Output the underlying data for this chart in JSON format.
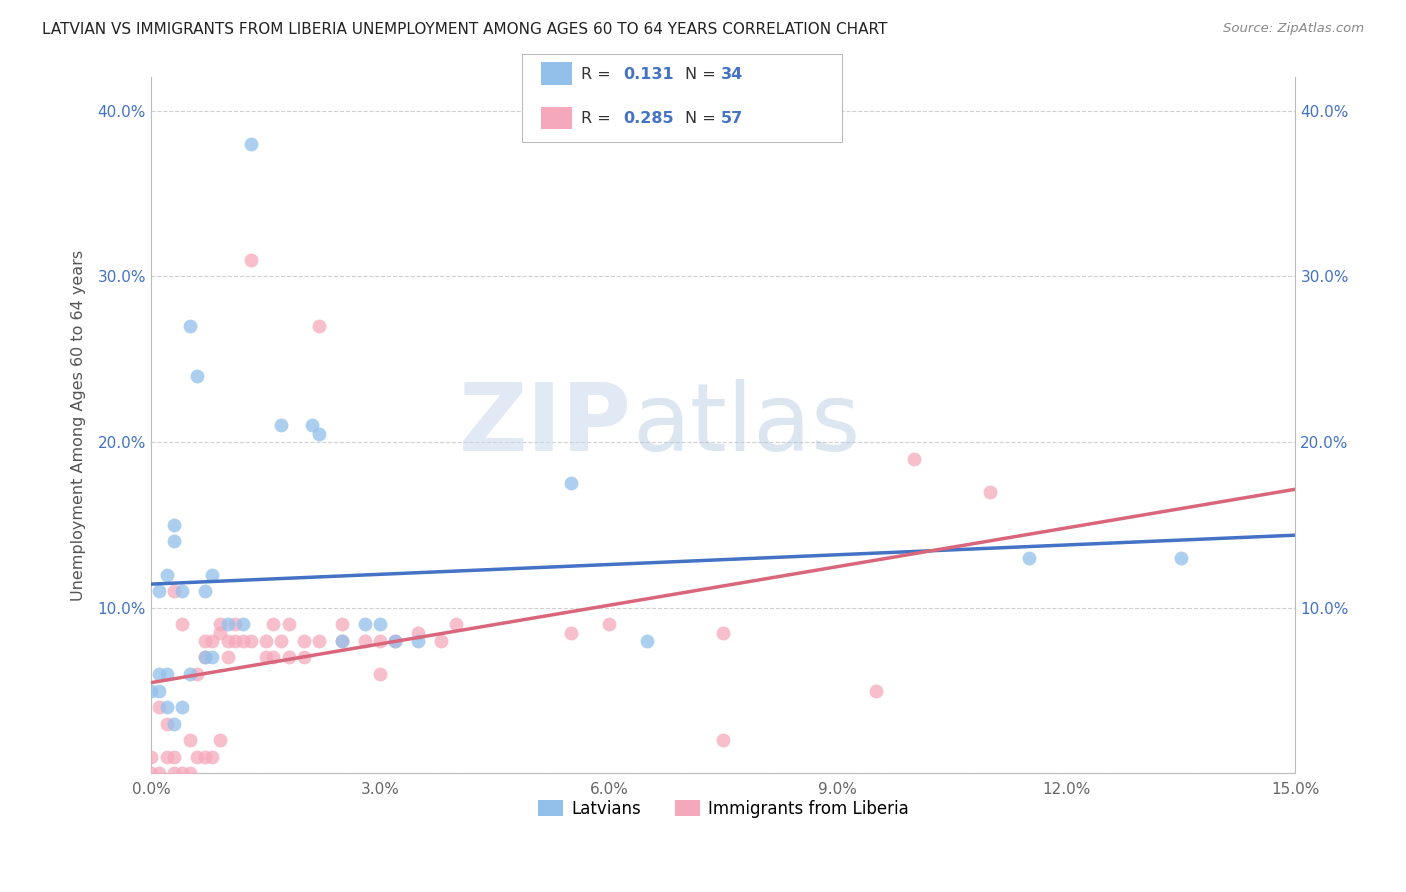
{
  "title": "LATVIAN VS IMMIGRANTS FROM LIBERIA UNEMPLOYMENT AMONG AGES 60 TO 64 YEARS CORRELATION CHART",
  "source": "Source: ZipAtlas.com",
  "ylabel": "Unemployment Among Ages 60 to 64 years",
  "xlim": [
    0.0,
    0.15
  ],
  "ylim": [
    0.0,
    0.42
  ],
  "xticks": [
    0.0,
    0.03,
    0.06,
    0.09,
    0.12,
    0.15
  ],
  "yticks": [
    0.0,
    0.1,
    0.2,
    0.3,
    0.4
  ],
  "xticklabels": [
    "0.0%",
    "3.0%",
    "6.0%",
    "9.0%",
    "12.0%",
    "15.0%"
  ],
  "yticklabels": [
    "",
    "10.0%",
    "20.0%",
    "30.0%",
    "40.0%"
  ],
  "legend_labels": [
    "Latvians",
    "Immigrants from Liberia"
  ],
  "R_latvian": 0.131,
  "N_latvian": 34,
  "R_liberia": 0.285,
  "N_liberia": 57,
  "color_latvian": "#92c0ea",
  "color_liberia": "#f5a8bb",
  "line_color_latvian": "#4472c4",
  "line_color_liberia": "#d9667a",
  "watermark_zip": "ZIP",
  "watermark_atlas": "atlas",
  "background_color": "#ffffff",
  "grid_color": "#d0d0d0",
  "latvian_x": [
    0.013,
    0.005,
    0.006,
    0.021,
    0.017,
    0.022,
    0.003,
    0.003,
    0.002,
    0.001,
    0.0,
    0.001,
    0.002,
    0.003,
    0.004,
    0.005,
    0.007,
    0.008,
    0.01,
    0.012,
    0.025,
    0.028,
    0.03,
    0.032,
    0.035,
    0.055,
    0.065,
    0.115,
    0.135,
    0.007,
    0.008,
    0.004,
    0.002,
    0.001
  ],
  "latvian_y": [
    0.38,
    0.27,
    0.24,
    0.21,
    0.21,
    0.205,
    0.15,
    0.14,
    0.12,
    0.11,
    0.05,
    0.05,
    0.04,
    0.03,
    0.04,
    0.06,
    0.07,
    0.07,
    0.09,
    0.09,
    0.08,
    0.09,
    0.09,
    0.08,
    0.08,
    0.175,
    0.08,
    0.13,
    0.13,
    0.11,
    0.12,
    0.11,
    0.06,
    0.06
  ],
  "liberia_x": [
    0.0,
    0.0,
    0.001,
    0.001,
    0.002,
    0.002,
    0.003,
    0.003,
    0.004,
    0.005,
    0.005,
    0.006,
    0.006,
    0.007,
    0.007,
    0.008,
    0.008,
    0.009,
    0.009,
    0.01,
    0.01,
    0.011,
    0.011,
    0.012,
    0.013,
    0.013,
    0.015,
    0.015,
    0.016,
    0.016,
    0.017,
    0.018,
    0.018,
    0.02,
    0.02,
    0.022,
    0.022,
    0.025,
    0.025,
    0.028,
    0.03,
    0.03,
    0.032,
    0.035,
    0.038,
    0.04,
    0.055,
    0.06,
    0.075,
    0.075,
    0.095,
    0.1,
    0.11,
    0.003,
    0.004,
    0.007,
    0.009
  ],
  "liberia_y": [
    0.0,
    0.01,
    0.0,
    0.04,
    0.01,
    0.03,
    0.0,
    0.01,
    0.0,
    0.0,
    0.02,
    0.01,
    0.06,
    0.01,
    0.07,
    0.01,
    0.08,
    0.02,
    0.09,
    0.08,
    0.07,
    0.08,
    0.09,
    0.08,
    0.08,
    0.31,
    0.07,
    0.08,
    0.07,
    0.09,
    0.08,
    0.07,
    0.09,
    0.07,
    0.08,
    0.08,
    0.27,
    0.08,
    0.09,
    0.08,
    0.06,
    0.08,
    0.08,
    0.085,
    0.08,
    0.09,
    0.085,
    0.09,
    0.02,
    0.085,
    0.05,
    0.19,
    0.17,
    0.11,
    0.09,
    0.08,
    0.085
  ]
}
